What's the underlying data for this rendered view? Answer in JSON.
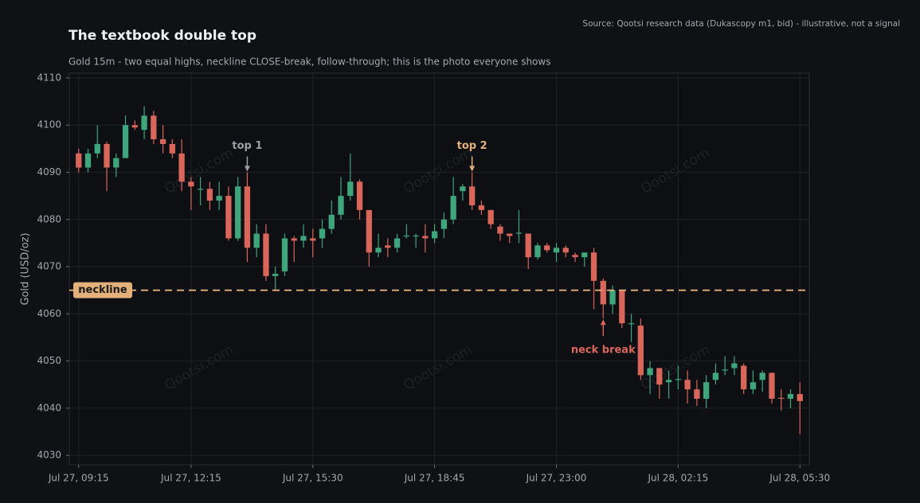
{
  "chart_data": {
    "type": "candlestick",
    "title": "The textbook double top",
    "subtitle": "Gold 15m - two equal highs, neckline CLOSE-break, follow-through; this is the photo everyone shows",
    "source": "Source: Qootsi research data (Dukascopy m1, bid) - illustrative, not a signal",
    "ylabel": "Gold (USD/oz)",
    "watermark": "Qootsi.com",
    "up_color": "#3fa57c",
    "down_color": "#d9665a",
    "grid": true,
    "ylim": [
      4028,
      4111
    ],
    "yticks": [
      4030,
      4040,
      4050,
      4060,
      4070,
      4080,
      4090,
      4100,
      4110
    ],
    "xlim": [
      -1,
      78
    ],
    "xticks": [
      {
        "value": 0,
        "label": "Jul 27, 09:15"
      },
      {
        "value": 12,
        "label": "Jul 27, 12:15"
      },
      {
        "value": 25,
        "label": "Jul 27, 15:30"
      },
      {
        "value": 38,
        "label": "Jul 27, 18:45"
      },
      {
        "value": 51,
        "label": "Jul 27, 23:00"
      },
      {
        "value": 64,
        "label": "Jul 28, 02:15"
      },
      {
        "value": 77,
        "label": "Jul 28, 05:30"
      }
    ],
    "open": [
      4094,
      4091,
      4094,
      4096,
      4091,
      4093,
      4100,
      4099,
      4102,
      4097,
      4096,
      4094,
      4088,
      4086.5,
      4086.5,
      4084,
      4085,
      4076,
      4087,
      4074,
      4077,
      4068,
      4069,
      4076,
      4075.5,
      4076,
      4076,
      4078,
      4081,
      4085,
      4088,
      4082,
      4073,
      4074.5,
      4074,
      4076.4,
      4076.4,
      4076.5,
      4076,
      4078,
      4080,
      4086,
      4087,
      4083,
      4082,
      4078.5,
      4077,
      4077,
      4077,
      4072,
      4074.5,
      4073,
      4074,
      4072.5,
      4072,
      4073,
      4067,
      4062,
      4065,
      4057.8,
      4057.5,
      4047,
      4048.5,
      4045.5,
      4046,
      4046,
      4044,
      4042,
      4046,
      4048,
      4048.5,
      4049,
      4044,
      4046,
      4047.5,
      4042.2,
      4042,
      4043
    ],
    "high": [
      4095,
      4095,
      4100,
      4096.5,
      4094,
      4102,
      4101,
      4104,
      4103,
      4100,
      4097,
      4097,
      4089,
      4089,
      4088,
      4088,
      4087,
      4089,
      4090,
      4079,
      4079,
      4070,
      4077,
      4076.5,
      4079,
      4078,
      4080,
      4084,
      4089,
      4094,
      4088.5,
      4082,
      4077,
      4076,
      4077,
      4079,
      4077,
      4079,
      4079,
      4081.5,
      4089,
      4087.5,
      4090,
      4084,
      4082,
      4079,
      4077,
      4082,
      4077,
      4075,
      4075,
      4075,
      4074.5,
      4073,
      4073,
      4074,
      4067.5,
      4066,
      4065,
      4060,
      4059,
      4050,
      4048.5,
      4048,
      4049,
      4048,
      4046,
      4047,
      4049.5,
      4051,
      4051,
      4049.5,
      4048,
      4048,
      4047.5,
      4044,
      4044,
      4045.5
    ],
    "low": [
      4090,
      4090,
      4093,
      4086,
      4089,
      4093,
      4099,
      4097,
      4096,
      4094,
      4093,
      4086,
      4082,
      4083,
      4082,
      4082,
      4075.5,
      4075.5,
      4071,
      4072,
      4067,
      4065,
      4068,
      4071,
      4074,
      4072,
      4074,
      4077,
      4080,
      4084,
      4080,
      4070,
      4072,
      4072,
      4073,
      4076,
      4074,
      4073,
      4075,
      4076,
      4079,
      4084,
      4082,
      4081,
      4078,
      4075.5,
      4075,
      4075,
      4069.5,
      4071.5,
      4073,
      4071,
      4072,
      4071,
      4070,
      4061,
      4059,
      4060,
      4057,
      4054,
      4046,
      4043,
      4042,
      4042,
      4044,
      4041,
      4040.5,
      4040,
      4045,
      4047,
      4047,
      4043,
      4043,
      4043.5,
      4041,
      4039.5,
      4040,
      4034.5
    ],
    "close": [
      4091,
      4094,
      4096,
      4091,
      4093,
      4100,
      4099.5,
      4102,
      4097,
      4096,
      4094,
      4088,
      4087,
      4086.5,
      4084,
      4085,
      4076,
      4087,
      4074,
      4077,
      4068,
      4068.5,
      4076,
      4075.5,
      4076.5,
      4075.5,
      4078,
      4081,
      4085,
      4088,
      4082,
      4073,
      4074,
      4074,
      4076,
      4076.6,
      4076.6,
      4076,
      4077.5,
      4080,
      4085,
      4087,
      4083,
      4082,
      4079,
      4077,
      4076.5,
      4077.2,
      4072,
      4074.5,
      4073.5,
      4074,
      4073,
      4072,
      4073,
      4067,
      4062,
      4065,
      4058,
      4058,
      4047,
      4048.5,
      4045,
      4046,
      4046.2,
      4044,
      4042,
      4045.5,
      4047.5,
      4048.2,
      4049.5,
      4044,
      4045.5,
      4047.5,
      4042,
      4042,
      4043,
      4041.5
    ],
    "neckline": {
      "label": "neckline",
      "value": 4065,
      "color": "#e3b07a"
    },
    "annotations": [
      {
        "text": "top 1",
        "x": 18,
        "y": 4090,
        "color": "#9aa0a6",
        "side": "above"
      },
      {
        "text": "top 2",
        "x": 42,
        "y": 4090,
        "color": "#e3b07a",
        "side": "above"
      },
      {
        "text": "neck break",
        "x": 56,
        "y": 4059,
        "color": "#d9665a",
        "side": "below"
      }
    ]
  }
}
